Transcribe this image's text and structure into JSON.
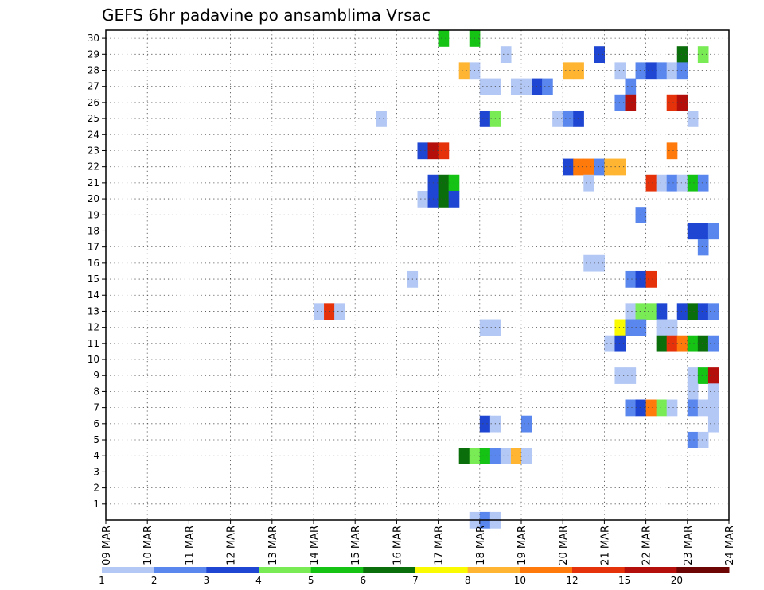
{
  "chart_data": {
    "type": "heatmap",
    "title": "GEFS 6hr padavine po ansamblima Vrsac",
    "xlabel": "",
    "ylabel": "",
    "x_tick_labels": [
      "09 MAR",
      "10 MAR",
      "11 MAR",
      "12 MAR",
      "13 MAR",
      "14 MAR",
      "15 MAR",
      "16 MAR",
      "17 MAR",
      "18 MAR",
      "19 MAR",
      "20 MAR",
      "21 MAR",
      "22 MAR",
      "23 MAR",
      "24 MAR"
    ],
    "y_tick_labels": [
      "1",
      "2",
      "3",
      "4",
      "5",
      "6",
      "7",
      "8",
      "9",
      "10",
      "11",
      "12",
      "13",
      "14",
      "15",
      "16",
      "17",
      "18",
      "19",
      "20",
      "21",
      "22",
      "23",
      "24",
      "25",
      "26",
      "27",
      "28",
      "29",
      "30"
    ],
    "time_step_hours": 6,
    "steps_per_day": 4,
    "ylim": [
      0,
      30
    ],
    "grid": "dotted",
    "colorbar": {
      "labels": [
        "1",
        "2",
        "3",
        "4",
        "5",
        "6",
        "7",
        "8",
        "10",
        "12",
        "15",
        "20"
      ],
      "colors": [
        "#b4c8f5",
        "#5a87ee",
        "#1e46d2",
        "#78eb55",
        "#14c314",
        "#0a6e0a",
        "#fafa00",
        "#ffb432",
        "#ff7a0a",
        "#e6320a",
        "#b40f0a",
        "#6e0505"
      ]
    },
    "cells": [
      [
        30,
        32,
        4
      ],
      [
        30,
        35,
        4
      ],
      [
        29,
        38,
        0
      ],
      [
        29,
        47,
        2
      ],
      [
        29,
        55,
        5
      ],
      [
        29,
        57,
        3
      ],
      [
        28,
        34,
        7
      ],
      [
        28,
        35,
        0
      ],
      [
        28,
        44,
        7
      ],
      [
        28,
        45,
        7
      ],
      [
        28,
        49,
        0
      ],
      [
        28,
        51,
        1
      ],
      [
        28,
        52,
        2
      ],
      [
        28,
        53,
        1
      ],
      [
        28,
        54,
        0
      ],
      [
        28,
        55,
        1
      ],
      [
        27,
        36,
        0
      ],
      [
        27,
        37,
        0
      ],
      [
        27,
        39,
        0
      ],
      [
        27,
        40,
        0
      ],
      [
        27,
        41,
        2
      ],
      [
        27,
        42,
        1
      ],
      [
        27,
        50,
        1
      ],
      [
        26,
        49,
        1
      ],
      [
        26,
        50,
        10
      ],
      [
        26,
        54,
        9
      ],
      [
        26,
        55,
        10
      ],
      [
        25,
        26,
        0
      ],
      [
        25,
        36,
        2
      ],
      [
        25,
        37,
        3
      ],
      [
        25,
        43,
        0
      ],
      [
        25,
        44,
        1
      ],
      [
        25,
        45,
        2
      ],
      [
        25,
        56,
        0
      ],
      [
        23,
        30,
        2
      ],
      [
        23,
        31,
        10
      ],
      [
        23,
        32,
        9
      ],
      [
        23,
        54,
        8
      ],
      [
        22,
        44,
        2
      ],
      [
        22,
        45,
        8
      ],
      [
        22,
        46,
        8
      ],
      [
        22,
        47,
        1
      ],
      [
        22,
        48,
        7
      ],
      [
        22,
        49,
        7
      ],
      [
        21,
        31,
        2
      ],
      [
        21,
        32,
        5
      ],
      [
        21,
        33,
        4
      ],
      [
        21,
        46,
        0
      ],
      [
        21,
        52,
        9
      ],
      [
        21,
        53,
        0
      ],
      [
        21,
        54,
        1
      ],
      [
        21,
        55,
        0
      ],
      [
        21,
        56,
        4
      ],
      [
        21,
        57,
        1
      ],
      [
        20,
        30,
        0
      ],
      [
        20,
        31,
        2
      ],
      [
        20,
        32,
        5
      ],
      [
        20,
        33,
        2
      ],
      [
        19,
        51,
        1
      ],
      [
        18,
        56,
        2
      ],
      [
        18,
        57,
        2
      ],
      [
        18,
        58,
        1
      ],
      [
        17,
        57,
        1
      ],
      [
        16,
        46,
        0
      ],
      [
        16,
        47,
        0
      ],
      [
        15,
        29,
        0
      ],
      [
        15,
        50,
        1
      ],
      [
        15,
        51,
        2
      ],
      [
        15,
        52,
        9
      ],
      [
        13,
        20,
        0
      ],
      [
        13,
        21,
        9
      ],
      [
        13,
        22,
        0
      ],
      [
        13,
        50,
        0
      ],
      [
        13,
        51,
        3
      ],
      [
        13,
        52,
        3
      ],
      [
        13,
        53,
        2
      ],
      [
        13,
        55,
        2
      ],
      [
        13,
        56,
        5
      ],
      [
        13,
        57,
        2
      ],
      [
        13,
        58,
        1
      ],
      [
        12,
        36,
        0
      ],
      [
        12,
        37,
        0
      ],
      [
        12,
        49,
        6
      ],
      [
        12,
        50,
        1
      ],
      [
        12,
        51,
        1
      ],
      [
        12,
        53,
        0
      ],
      [
        12,
        54,
        0
      ],
      [
        11,
        48,
        0
      ],
      [
        11,
        49,
        2
      ],
      [
        11,
        53,
        5
      ],
      [
        11,
        54,
        9
      ],
      [
        11,
        55,
        8
      ],
      [
        11,
        56,
        4
      ],
      [
        11,
        57,
        5
      ],
      [
        11,
        58,
        1
      ],
      [
        9,
        49,
        0
      ],
      [
        9,
        50,
        0
      ],
      [
        9,
        56,
        0
      ],
      [
        9,
        57,
        4
      ],
      [
        9,
        58,
        10
      ],
      [
        8,
        56,
        0
      ],
      [
        8,
        58,
        0
      ],
      [
        7,
        50,
        1
      ],
      [
        7,
        51,
        2
      ],
      [
        7,
        52,
        8
      ],
      [
        7,
        53,
        3
      ],
      [
        7,
        54,
        0
      ],
      [
        7,
        56,
        1
      ],
      [
        7,
        57,
        0
      ],
      [
        7,
        58,
        0
      ],
      [
        6,
        36,
        2
      ],
      [
        6,
        37,
        0
      ],
      [
        6,
        40,
        1
      ],
      [
        6,
        58,
        0
      ],
      [
        5,
        56,
        1
      ],
      [
        5,
        57,
        0
      ],
      [
        4,
        34,
        5
      ],
      [
        4,
        35,
        3
      ],
      [
        4,
        36,
        4
      ],
      [
        4,
        37,
        1
      ],
      [
        4,
        38,
        0
      ],
      [
        4,
        39,
        7
      ],
      [
        4,
        40,
        0
      ],
      [
        0,
        35,
        0
      ],
      [
        0,
        36,
        1
      ],
      [
        0,
        37,
        0
      ]
    ]
  }
}
